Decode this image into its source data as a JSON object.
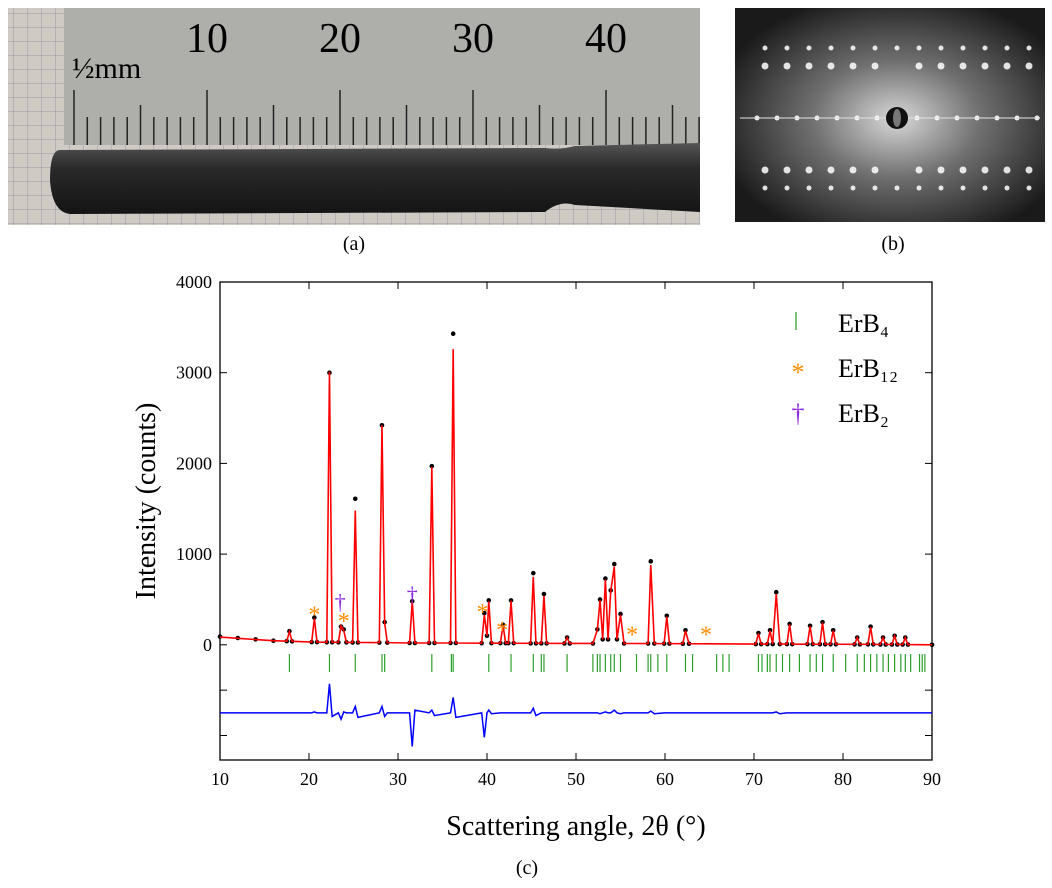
{
  "panels": {
    "a": {
      "label": "(a)",
      "ruler_labels": [
        "10",
        "20",
        "30",
        "40"
      ],
      "ruler_note": "½mm"
    },
    "b": {
      "label": "(b)"
    }
  },
  "chart_data": {
    "type": "line",
    "panel_label": "(c)",
    "x_label": "Scattering angle, 2θ (°)",
    "y_label": "Intensity (counts)",
    "xlim": [
      10,
      90
    ],
    "xticks": [
      10,
      20,
      30,
      40,
      50,
      60,
      70,
      80,
      90
    ],
    "ylim": [
      -1270,
      4000
    ],
    "yticks": [
      0,
      1000,
      2000,
      3000,
      4000
    ],
    "minor_yticks": [
      -500,
      -1000
    ],
    "legend": "upper right",
    "x": [
      10,
      12,
      14,
      16,
      17.5,
      17.8,
      18.1,
      20.3,
      20.6,
      20.9,
      22.0,
      22.3,
      22.6,
      23.3,
      23.6,
      23.9,
      24.2,
      24.9,
      25.2,
      25.5,
      27.9,
      28.2,
      28.5,
      28.8,
      31.3,
      31.6,
      31.9,
      33.5,
      33.8,
      34.1,
      35.9,
      36.2,
      36.5,
      39.4,
      39.7,
      40.0,
      40.2,
      40.5,
      41.5,
      41.8,
      42.1,
      42.4,
      42.7,
      43.0,
      44.9,
      45.2,
      45.5,
      46.1,
      46.4,
      46.7,
      48.7,
      49.0,
      49.3,
      51.9,
      52.4,
      52.7,
      53.0,
      53.3,
      53.6,
      53.9,
      54.3,
      54.6,
      55.0,
      55.4,
      58.1,
      58.4,
      58.8,
      59.9,
      60.2,
      60.5,
      62.0,
      62.3,
      62.7,
      70.2,
      70.5,
      70.8,
      71.5,
      71.8,
      72.1,
      72.5,
      72.9,
      73.7,
      74.0,
      74.3,
      76.0,
      76.3,
      76.6,
      77.4,
      77.7,
      78.0,
      78.6,
      78.9,
      79.2,
      81.3,
      81.6,
      81.9,
      82.8,
      83.1,
      83.4,
      84.2,
      84.5,
      84.8,
      85.5,
      85.8,
      86.1,
      86.7,
      87.0,
      87.3,
      90
    ],
    "observed": {
      "color": "#000000",
      "values": [
        90,
        75,
        60,
        45,
        40,
        150,
        38,
        30,
        300,
        30,
        28,
        3000,
        28,
        27,
        200,
        170,
        27,
        26,
        1610,
        26,
        24,
        2420,
        250,
        24,
        20,
        480,
        20,
        20,
        1970,
        20,
        20,
        3430,
        20,
        18,
        350,
        100,
        490,
        18,
        18,
        220,
        18,
        18,
        490,
        18,
        16,
        790,
        16,
        16,
        560,
        16,
        15,
        80,
        15,
        15,
        170,
        500,
        60,
        730,
        60,
        600,
        890,
        60,
        340,
        15,
        14,
        920,
        14,
        13,
        320,
        13,
        12,
        160,
        12,
        8,
        130,
        8,
        8,
        160,
        8,
        580,
        8,
        8,
        230,
        7,
        7,
        210,
        7,
        6,
        250,
        6,
        6,
        160,
        6,
        5,
        80,
        5,
        5,
        200,
        5,
        4,
        80,
        4,
        4,
        100,
        4,
        3,
        80,
        3,
        0
      ]
    },
    "calculated": {
      "color": "#ff0000",
      "values": [
        85,
        72,
        58,
        45,
        40,
        145,
        38,
        30,
        290,
        30,
        28,
        3010,
        28,
        27,
        210,
        160,
        27,
        26,
        1480,
        26,
        24,
        2420,
        240,
        24,
        20,
        480,
        20,
        20,
        1960,
        20,
        20,
        3260,
        20,
        18,
        330,
        100,
        480,
        18,
        18,
        215,
        18,
        18,
        485,
        18,
        16,
        750,
        16,
        16,
        540,
        16,
        15,
        78,
        15,
        15,
        165,
        490,
        60,
        720,
        60,
        590,
        860,
        60,
        330,
        15,
        14,
        880,
        14,
        13,
        310,
        13,
        12,
        155,
        12,
        8,
        125,
        8,
        8,
        155,
        8,
        560,
        8,
        8,
        225,
        7,
        7,
        205,
        7,
        6,
        245,
        6,
        6,
        155,
        6,
        5,
        78,
        5,
        5,
        195,
        5,
        4,
        78,
        4,
        4,
        98,
        4,
        3,
        78,
        3,
        0
      ]
    },
    "difference": {
      "color": "#0000ff",
      "values": [
        -750,
        -750,
        -750,
        -750,
        -750,
        -750,
        -750,
        -750,
        -740,
        -750,
        -750,
        -430,
        -790,
        -750,
        -820,
        -740,
        -750,
        -750,
        -680,
        -800,
        -750,
        -680,
        -790,
        -750,
        -750,
        -1120,
        -720,
        -750,
        -720,
        -780,
        -750,
        -580,
        -800,
        -750,
        -1020,
        -750,
        -720,
        -760,
        -750,
        -750,
        -750,
        -750,
        -750,
        -750,
        -750,
        -700,
        -780,
        -750,
        -750,
        -750,
        -750,
        -750,
        -750,
        -750,
        -750,
        -760,
        -750,
        -740,
        -750,
        -750,
        -720,
        -750,
        -760,
        -750,
        -750,
        -730,
        -760,
        -750,
        -750,
        -750,
        -750,
        -750,
        -750,
        -750,
        -750,
        -750,
        -750,
        -750,
        -750,
        -740,
        -760,
        -750,
        -750,
        -750,
        -750,
        -750,
        -750,
        -750,
        -750,
        -750,
        -750,
        -750,
        -750,
        -750,
        -750,
        -750,
        -750,
        -750,
        -750,
        -750,
        -750,
        -750,
        -750,
        -750,
        -750,
        -750,
        -750,
        -750,
        -750
      ]
    },
    "phases": [
      {
        "name": "ErB₄",
        "color": "#2ca02c",
        "marker": "|",
        "x": [
          17.8,
          22.3,
          25.2,
          28.2,
          28.5,
          33.8,
          36.0,
          36.2,
          40.2,
          42.7,
          45.2,
          46.1,
          46.4,
          49.0,
          51.9,
          52.4,
          52.7,
          53.3,
          53.9,
          54.3,
          55.0,
          56.8,
          58.1,
          58.4,
          59.2,
          60.2,
          62.3,
          63.1,
          65.8,
          66.5,
          67.2,
          70.5,
          70.9,
          71.5,
          71.8,
          72.5,
          73.2,
          74.0,
          75.1,
          76.3,
          77.0,
          77.7,
          78.9,
          80.3,
          81.6,
          82.4,
          83.1,
          83.8,
          84.5,
          85.1,
          85.8,
          86.5,
          87.0,
          87.6,
          88.6,
          88.9,
          89.2
        ]
      },
      {
        "name": "ErB₁₂",
        "color": "#ff8c00",
        "marker": "*",
        "x": [
          20.6,
          23.9,
          39.5,
          41.7,
          56.3,
          64.6
        ],
        "values": [
          400,
          330,
          430,
          230,
          180,
          180
        ]
      },
      {
        "name": "ErB₂",
        "color": "#8a2be2",
        "marker": "†",
        "x": [
          23.5,
          31.6
        ],
        "values": [
          480,
          560
        ]
      }
    ]
  }
}
